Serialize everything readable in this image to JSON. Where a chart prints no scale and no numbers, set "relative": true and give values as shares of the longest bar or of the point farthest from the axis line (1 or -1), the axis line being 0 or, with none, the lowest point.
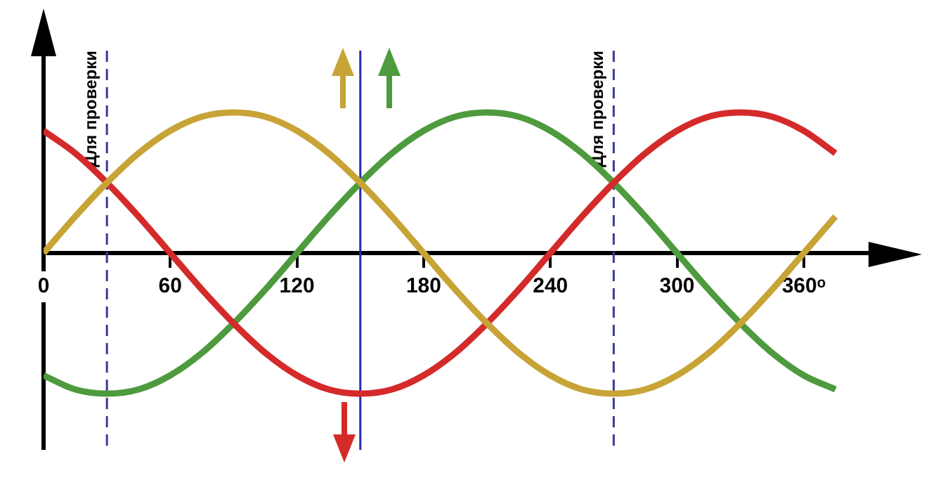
{
  "chart_data": {
    "type": "line",
    "relative": true,
    "legend": false,
    "grid": false,
    "marker": "none",
    "line_style": "solid",
    "x": [
      0,
      15,
      30,
      45,
      60,
      75,
      90,
      105,
      120,
      135,
      150,
      165,
      180,
      195,
      210,
      225,
      240,
      255,
      270,
      285,
      300,
      315,
      330,
      345,
      360,
      375
    ],
    "xlim": [
      0,
      392
    ],
    "xticks": [
      {
        "value": 0,
        "label": "0"
      },
      60,
      120,
      180,
      240,
      300,
      {
        "value": 360,
        "label": "360ᵒ"
      }
    ],
    "series": [
      {
        "color": "#c8a437",
        "values": [
          0,
          0.26,
          0.5,
          0.71,
          0.87,
          0.97,
          1,
          0.97,
          0.87,
          0.71,
          0.5,
          0.26,
          0,
          -0.26,
          -0.5,
          -0.71,
          -0.87,
          -0.97,
          -1,
          -0.97,
          -0.87,
          -0.71,
          -0.5,
          -0.26,
          0,
          0.26
        ]
      },
      {
        "color": "#d42a2a",
        "values": [
          0.87,
          0.71,
          0.5,
          0.26,
          0,
          -0.26,
          -0.5,
          -0.71,
          -0.87,
          -0.97,
          -1,
          -0.97,
          -0.87,
          -0.71,
          -0.5,
          -0.26,
          0,
          0.26,
          0.5,
          0.71,
          0.87,
          0.97,
          1,
          0.97,
          0.87,
          0.71
        ]
      },
      {
        "color": "#4e9a3e",
        "values": [
          -0.87,
          -0.97,
          -1,
          -0.97,
          -0.87,
          -0.71,
          -0.5,
          -0.26,
          0,
          0.26,
          0.5,
          0.71,
          0.87,
          0.97,
          1,
          0.97,
          0.87,
          0.71,
          0.5,
          0.26,
          0,
          -0.26,
          -0.5,
          -0.71,
          -0.87,
          -0.97
        ]
      }
    ],
    "ref_lines": [
      {
        "axis": "x",
        "value": 30,
        "label": "Для проверки",
        "color": "#3a3a9a",
        "line_style": "dashed"
      },
      {
        "axis": "x",
        "value": 150,
        "label": null,
        "color": "#2a2ab0",
        "line_style": "solid"
      },
      {
        "axis": "x",
        "value": 270,
        "label": "Для проверки",
        "color": "#3a3a9a",
        "line_style": "dashed"
      }
    ]
  }
}
